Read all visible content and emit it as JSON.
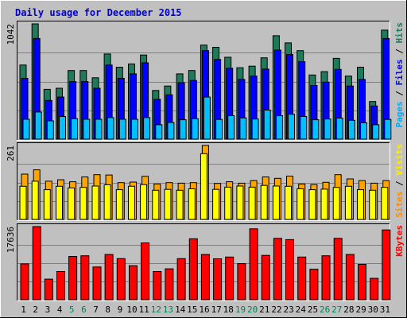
{
  "chart_data": {
    "type": "bar",
    "title": "Daily usage for December 2015",
    "categories": [
      "1",
      "2",
      "3",
      "4",
      "5",
      "6",
      "7",
      "8",
      "9",
      "10",
      "11",
      "12",
      "13",
      "14",
      "15",
      "16",
      "17",
      "18",
      "19",
      "20",
      "21",
      "22",
      "23",
      "24",
      "25",
      "26",
      "27",
      "28",
      "29",
      "30",
      "31"
    ],
    "weekend_days": [
      "5",
      "6",
      "12",
      "13",
      "19",
      "20",
      "26",
      "27"
    ],
    "panels": [
      {
        "id": "hits-files-pages",
        "max_label": "1042",
        "ylim": [
          0,
          1042
        ],
        "right_label": [
          {
            "text": "Pages",
            "color": "#00aaff"
          },
          {
            "text": " / ",
            "color": "#000000"
          },
          {
            "text": "Files",
            "color": "#0000ff"
          },
          {
            "text": " / ",
            "color": "#000000"
          },
          {
            "text": "Hits",
            "color": "#1f7a5a"
          }
        ],
        "series": [
          {
            "name": "Hits",
            "color": "#1f7a5a",
            "values": [
              670,
              1042,
              450,
              460,
              620,
              620,
              555,
              770,
              650,
              680,
              760,
              440,
              480,
              590,
              620,
              850,
              830,
              740,
              645,
              660,
              735,
              935,
              870,
              800,
              580,
              610,
              730,
              570,
              650,
              340,
              985
            ]
          },
          {
            "name": "Files",
            "color": "#0000ff",
            "values": [
              550,
              910,
              350,
              380,
              520,
              520,
              460,
              670,
              550,
              590,
              690,
              360,
              400,
              510,
              530,
              800,
              720,
              640,
              540,
              570,
              633,
              805,
              765,
              700,
              485,
              515,
              630,
              480,
              540,
              300,
              910
            ]
          },
          {
            "name": "Pages",
            "color": "#00bfff",
            "values": [
              180,
              245,
              165,
              205,
              185,
              180,
              180,
              195,
              180,
              180,
              195,
              130,
              150,
              175,
              185,
              380,
              178,
              212,
              192,
              182,
              262,
              212,
              225,
              205,
              175,
              182,
              190,
              170,
              148,
              130,
              178
            ]
          }
        ]
      },
      {
        "id": "visits-sites",
        "max_label": "261",
        "ylim": [
          0,
          261
        ],
        "right_label": [
          {
            "text": "Sites",
            "color": "#ff8c00"
          },
          {
            "text": " / ",
            "color": "#000000"
          },
          {
            "text": "Visits",
            "color": "#ffee00"
          }
        ],
        "series": [
          {
            "name": "Visits",
            "color": "#ffa500",
            "values": [
              160,
              175,
              135,
              140,
              133,
              150,
              158,
              157,
              130,
              132,
              152,
              125,
              130,
              128,
              130,
              261,
              127,
              133,
              128,
              137,
              150,
              145,
              153,
              125,
              123,
              131,
              158,
              143,
              137,
              128,
              137
            ]
          },
          {
            "name": "Sites",
            "color": "#ffff00",
            "values": [
              117,
              135,
              105,
              117,
              111,
              113,
              118,
              122,
              105,
              117,
              123,
              103,
              106,
              103,
              108,
              232,
              106,
              114,
              118,
              114,
              120,
              118,
              117,
              108,
              105,
              107,
              113,
              117,
              105,
              103,
              113
            ]
          }
        ]
      },
      {
        "id": "kbytes",
        "max_label": "17636",
        "ylim": [
          0,
          17636
        ],
        "right_label": [
          {
            "text": "KBytes",
            "color": "#ff0000"
          }
        ],
        "series": [
          {
            "name": "KBytes",
            "color": "#ff0000",
            "values": [
              8650,
              17636,
              4960,
              6800,
              10450,
              10600,
              7900,
              10900,
              9920,
              8200,
              13700,
              6800,
              7460,
              9920,
              14700,
              10900,
              9880,
              10300,
              8700,
              17100,
              10700,
              14800,
              14500,
              10300,
              7370,
              10600,
              14800,
              10900,
              8540,
              5160,
              16840
            ]
          }
        ]
      }
    ]
  }
}
